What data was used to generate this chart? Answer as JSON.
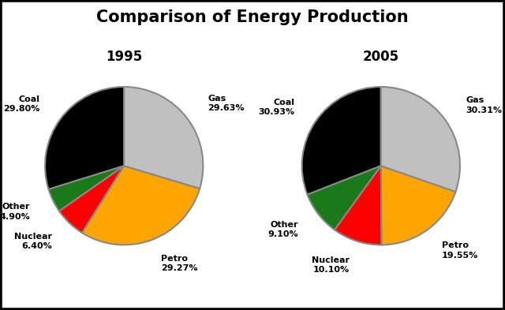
{
  "title": "Comparison of Energy Production",
  "title_fontsize": 15,
  "title_fontweight": "bold",
  "background_color": "#ffffff",
  "border_color": "#000000",
  "charts": [
    {
      "year": "1995",
      "labels": [
        "Coal",
        "Other",
        "Nuclear",
        "Petro",
        "Gas"
      ],
      "values": [
        29.8,
        4.9,
        6.4,
        29.27,
        29.63
      ],
      "colors": [
        "#000000",
        "#1a7a1a",
        "#ff0000",
        "#ffa500",
        "#c0c0c0"
      ],
      "pct_labels": [
        "29.80%",
        "4.90%",
        "6.40%",
        "29.27%",
        "29.63%"
      ],
      "startangle": 90
    },
    {
      "year": "2005",
      "labels": [
        "Coal",
        "Other",
        "Nuclear",
        "Petro",
        "Gas"
      ],
      "values": [
        30.93,
        9.1,
        10.1,
        19.55,
        30.31
      ],
      "colors": [
        "#000000",
        "#1a7a1a",
        "#ff0000",
        "#ffa500",
        "#c0c0c0"
      ],
      "pct_labels": [
        "30.93%",
        "9.10%",
        "10.10%",
        "19.55%",
        "30.31%"
      ],
      "startangle": 90
    }
  ]
}
